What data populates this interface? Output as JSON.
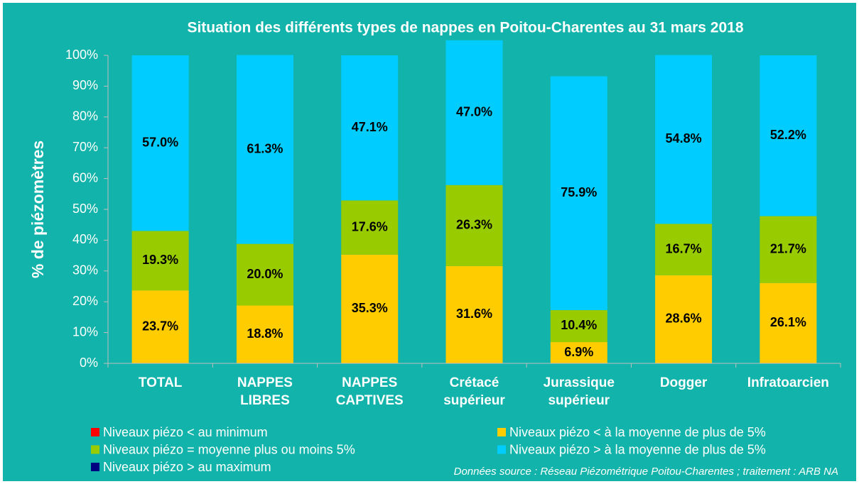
{
  "chart_data": {
    "type": "stacked_bar",
    "title": "Situation des différents types de nappes en Poitou-Charentes au 31 mars 2018",
    "ylabel": "% de piézomètres",
    "categories": [
      [
        "TOTAL"
      ],
      [
        "NAPPES",
        "LIBRES"
      ],
      [
        "NAPPES",
        "CAPTIVES"
      ],
      [
        "Crétacé",
        "supérieur"
      ],
      [
        "Jurassique",
        "supérieur"
      ],
      [
        "Dogger"
      ],
      [
        "Infratoarcien"
      ]
    ],
    "series": [
      {
        "name": "Niveaux piézo < au minimum",
        "color": "#ff0000",
        "values": [
          0,
          0,
          0,
          0,
          0,
          0,
          0
        ]
      },
      {
        "name": "Niveaux piézo < à la moyenne de plus de 5%",
        "color": "#ffcc00",
        "values": [
          23.7,
          18.8,
          35.3,
          31.6,
          6.9,
          28.6,
          26.1
        ],
        "value_labels": [
          "23.7%",
          "18.8%",
          "35.3%",
          "31.6%",
          "6.9%",
          "28.6%",
          "26.1%"
        ]
      },
      {
        "name": "Niveaux piézo = moyenne plus ou moins 5%",
        "color": "#99cc00",
        "values": [
          19.3,
          20.0,
          17.6,
          26.3,
          10.4,
          16.7,
          21.7
        ],
        "value_labels": [
          "19.3%",
          "20.0%",
          "17.6%",
          "26.3%",
          "10.4%",
          "16.7%",
          "21.7%"
        ]
      },
      {
        "name": "Niveaux piézo > à la moyenne de plus de 5%",
        "color": "#00ccff",
        "values": [
          57.0,
          61.3,
          47.1,
          47.0,
          75.9,
          54.8,
          52.2
        ],
        "value_labels": [
          "57.0%",
          "61.3%",
          "47.1%",
          "47.0%",
          "75.9%",
          "54.8%",
          "52.2%"
        ]
      },
      {
        "name": "Niveaux piézo > au maximum",
        "color": "#000080",
        "values": [
          0,
          0,
          0,
          0,
          0,
          0,
          0
        ]
      }
    ],
    "ylim": [
      0,
      100
    ],
    "yticks": [
      {
        "value": 0,
        "label": "0%"
      },
      {
        "value": 10,
        "label": "10%"
      },
      {
        "value": 20,
        "label": "20%"
      },
      {
        "value": 30,
        "label": "30%"
      },
      {
        "value": 40,
        "label": "40%"
      },
      {
        "value": 50,
        "label": "50%"
      },
      {
        "value": 60,
        "label": "60%"
      },
      {
        "value": 70,
        "label": "70%"
      },
      {
        "value": 80,
        "label": "80%"
      },
      {
        "value": 90,
        "label": "90%"
      },
      {
        "value": 100,
        "label": "100%"
      }
    ],
    "grid": false,
    "note": "Données source : Réseau Piézométrique Poitou-Charentes ; traitement : ARB NA"
  }
}
